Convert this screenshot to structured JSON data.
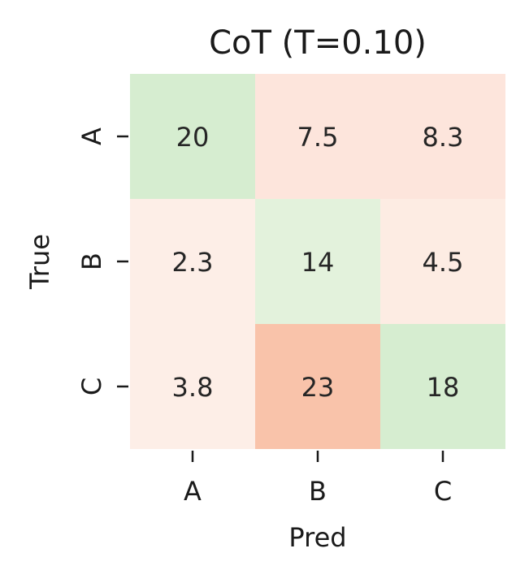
{
  "chart_data": {
    "type": "heatmap",
    "title": "CoT (T=0.10)",
    "xlabel": "Pred",
    "ylabel": "True",
    "x_categories": [
      "A",
      "B",
      "C"
    ],
    "y_categories": [
      "A",
      "B",
      "C"
    ],
    "values": [
      [
        20,
        7.5,
        8.3
      ],
      [
        2.3,
        14,
        4.5
      ],
      [
        3.8,
        23,
        18
      ]
    ],
    "value_labels": [
      [
        "20",
        "7.5",
        "8.3"
      ],
      [
        "2.3",
        "14",
        "4.5"
      ],
      [
        "3.8",
        "23",
        "18"
      ]
    ],
    "cell_colors": [
      [
        "#d6edd0",
        "#fde5dc",
        "#fde5dc"
      ],
      [
        "#fdeee7",
        "#e3f2dc",
        "#fdece3"
      ],
      [
        "#fdeee7",
        "#f9c3aa",
        "#d6edd0"
      ]
    ],
    "colorbar": false,
    "grid": false
  }
}
